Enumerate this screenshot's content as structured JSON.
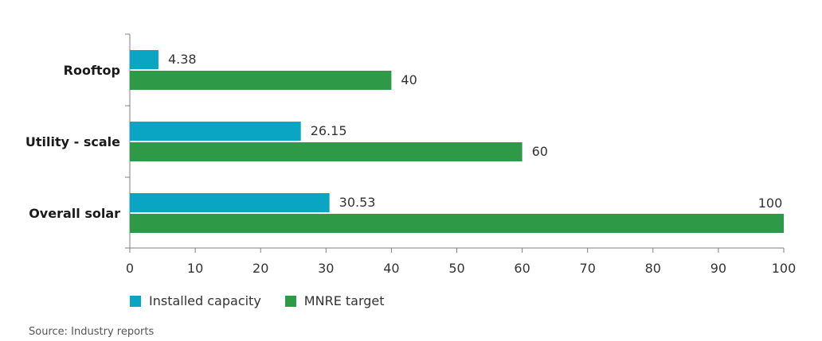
{
  "chart_data": {
    "type": "bar",
    "orientation": "horizontal",
    "categories": [
      "Rooftop",
      "Utility - scale",
      "Overall solar"
    ],
    "series": [
      {
        "name": "Installed capacity",
        "values": [
          4.38,
          26.15,
          30.53
        ],
        "labels": [
          "4.38",
          "26.15",
          "30.53"
        ],
        "color": "#0aa5c2"
      },
      {
        "name": "MNRE target",
        "values": [
          40,
          60,
          100
        ],
        "labels": [
          "40",
          "60",
          "100"
        ],
        "color": "#2e9a48"
      }
    ],
    "xlim": [
      0,
      100
    ],
    "xticks": [
      "0",
      "10",
      "20",
      "30",
      "40",
      "50",
      "60",
      "70",
      "80",
      "90",
      "100"
    ],
    "grid": false,
    "legend_position": "bottom-left"
  },
  "source_note": "Source: Industry reports"
}
